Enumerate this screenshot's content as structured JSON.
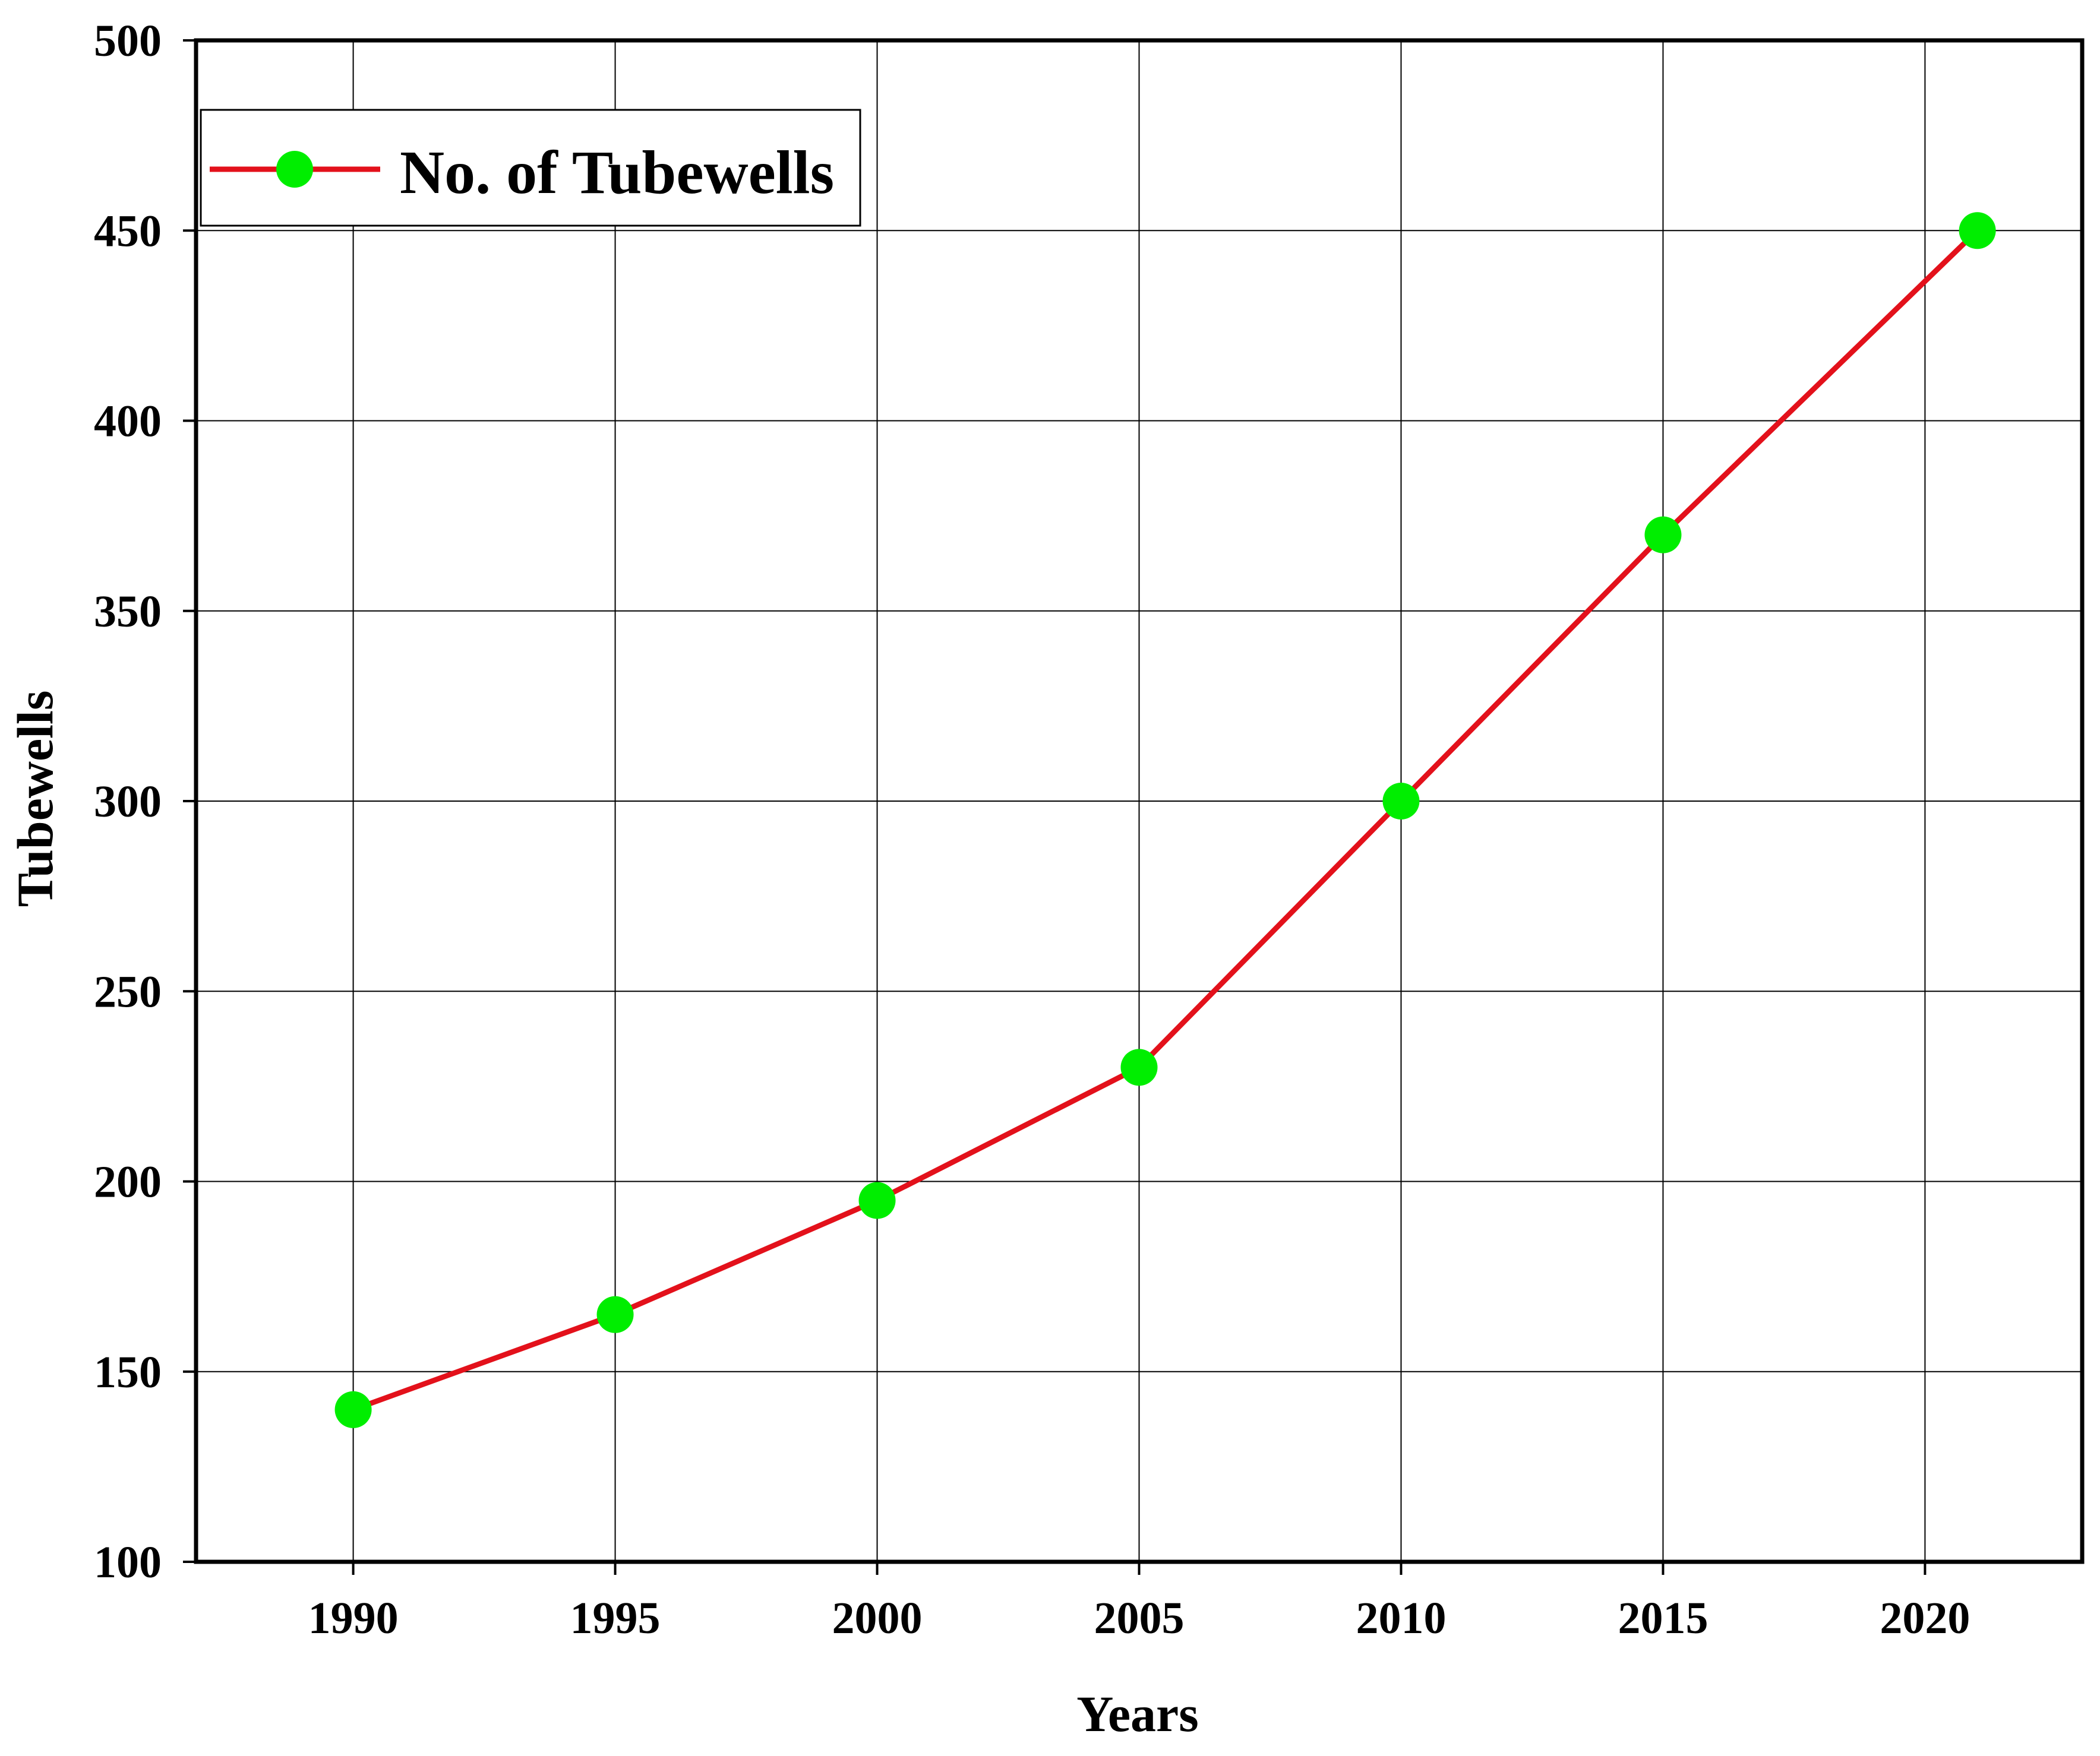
{
  "chart_data": {
    "type": "line",
    "title": "",
    "xlabel": "Years",
    "ylabel": "Tubewells",
    "x": [
      1990,
      1995,
      2000,
      2005,
      2010,
      2015,
      2021
    ],
    "series": [
      {
        "name": "No. of Tubewells",
        "values": [
          140,
          165,
          195,
          230,
          300,
          370,
          450
        ],
        "line_color": "#e3111b",
        "marker_color": "#00ee00"
      }
    ],
    "x_ticks": [
      "1990",
      "1995",
      "2000",
      "2005",
      "2010",
      "2015",
      "2020"
    ],
    "x_tick_values": [
      1990,
      1995,
      2000,
      2005,
      2010,
      2015,
      2020
    ],
    "y_ticks": [
      "100",
      "150",
      "200",
      "250",
      "300",
      "350",
      "400",
      "450",
      "500"
    ],
    "y_tick_values": [
      100,
      150,
      200,
      250,
      300,
      350,
      400,
      450,
      500
    ],
    "xlim": [
      1987,
      2023
    ],
    "ylim": [
      100,
      500
    ],
    "grid": true,
    "legend_position": "top-left"
  }
}
